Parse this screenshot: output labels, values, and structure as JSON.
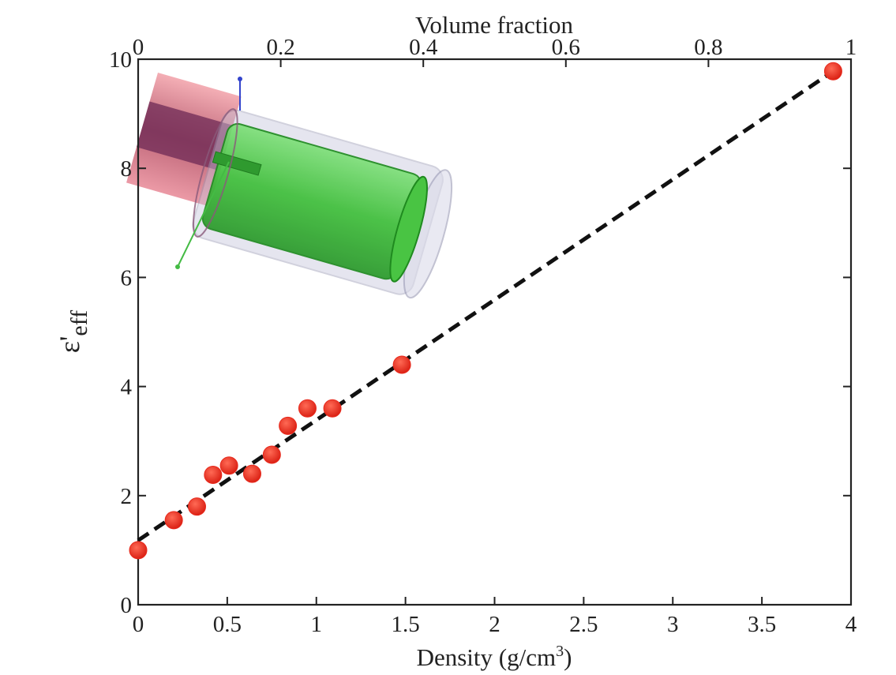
{
  "chart_data": {
    "type": "scatter",
    "xlabel": {
      "main": "Density (g/cm",
      "sup": "3",
      "close": ")"
    },
    "x2label": "Volume fraction",
    "ylabel": {
      "main": "ε'",
      "sub": "eff"
    },
    "xlim": [
      0,
      4
    ],
    "ylim": [
      0,
      10
    ],
    "x2lim": [
      0,
      1
    ],
    "xticks": [
      0,
      0.5,
      1,
      1.5,
      2,
      2.5,
      3,
      3.5,
      4
    ],
    "xtick_labels": [
      "0",
      "0.5",
      "1",
      "1.5",
      "2",
      "2.5",
      "3",
      "3.5",
      "4"
    ],
    "x2ticks": [
      0,
      0.2,
      0.4,
      0.6,
      0.8,
      1
    ],
    "x2tick_labels": [
      "0",
      "0.2",
      "0.4",
      "0.6",
      "0.8",
      "1"
    ],
    "yticks": [
      0,
      2,
      4,
      6,
      8,
      10
    ],
    "ytick_labels": [
      "0",
      "2",
      "4",
      "6",
      "8",
      "10"
    ],
    "grid": false,
    "series": [
      {
        "kind": "points",
        "color": "#e8291c",
        "x": [
          0.0,
          0.2,
          0.33,
          0.42,
          0.51,
          0.64,
          0.75,
          0.84,
          0.95,
          1.09,
          1.48,
          3.9
        ],
        "y": [
          1.0,
          1.55,
          1.8,
          2.38,
          2.55,
          2.4,
          2.75,
          3.28,
          3.6,
          3.6,
          4.4,
          9.78
        ]
      },
      {
        "kind": "fit-line",
        "color": "#111111",
        "style": "dashed",
        "x": [
          0.0,
          3.9
        ],
        "y": [
          1.18,
          9.78
        ]
      }
    ],
    "inset": "3D cylinder model rendering (red/purple tube, green inner cylinder, translucent grey shell)"
  }
}
